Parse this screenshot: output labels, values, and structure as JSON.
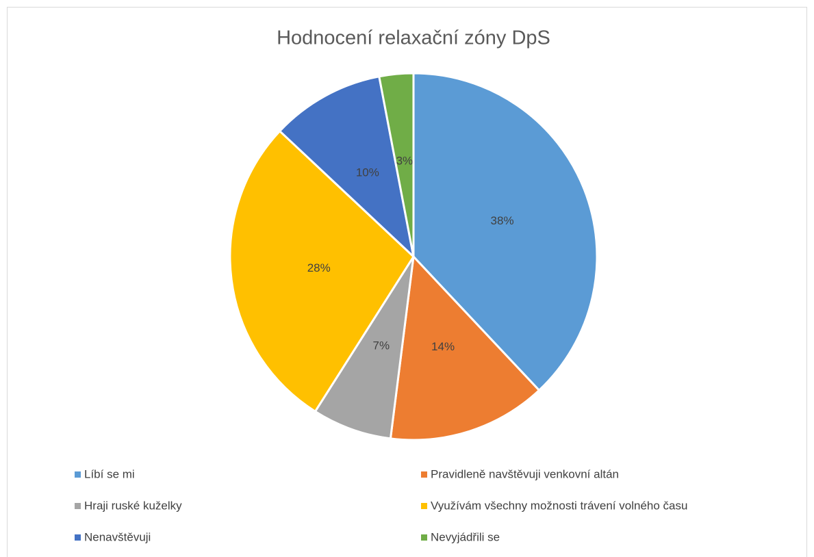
{
  "chart_data": {
    "type": "pie",
    "title": "Hodnocení relaxační zóny DpS",
    "categories": [
      "Líbí se mi",
      "Pravidleně navštěvuji venkovní altán",
      "Hraji ruské kuželky",
      "Využívám všechny možnosti trávení volného času",
      "Nenavštěvuji",
      "Nevyjádřili se"
    ],
    "values": [
      38,
      14,
      7,
      28,
      10,
      3
    ],
    "value_labels": [
      "38%",
      "14%",
      "7%",
      "28%",
      "10%",
      "3%"
    ],
    "colors": [
      "#5b9bd5",
      "#ed7d31",
      "#a5a5a5",
      "#ffc000",
      "#4472c4",
      "#70ad47"
    ],
    "legend": "bottom"
  }
}
